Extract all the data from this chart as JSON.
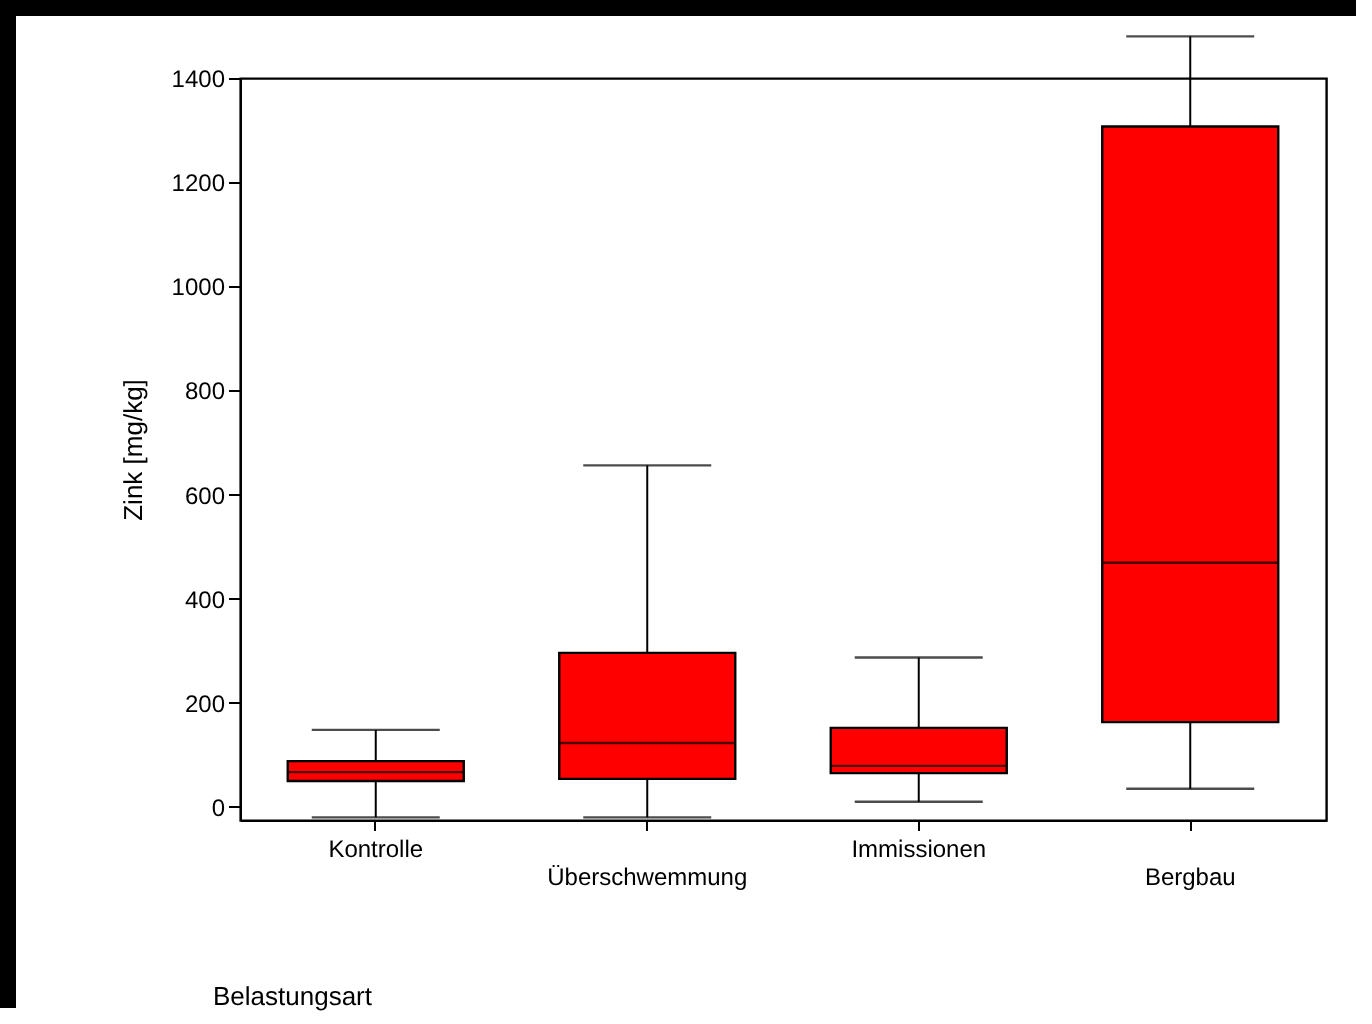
{
  "chart_data": {
    "type": "box",
    "xlabel": "Belastungsart",
    "ylabel": "Zink [mg/kg]",
    "categories": [
      "Kontrolle",
      "Überschwemmung",
      "Immissionen",
      "Bergbau"
    ],
    "boxes": [
      {
        "low": -20,
        "q1": 50,
        "median": 67,
        "q3": 88,
        "high": 148
      },
      {
        "low": -20,
        "q1": 54,
        "median": 123,
        "q3": 296,
        "high": 656
      },
      {
        "low": 10,
        "q1": 65,
        "median": 79,
        "q3": 152,
        "high": 287
      },
      {
        "low": 35,
        "q1": 163,
        "median": 469,
        "q3": 1307,
        "high": 1480
      }
    ],
    "color": "#ff0000",
    "ylim": [
      -25,
      1400
    ],
    "yticks": [
      0,
      200,
      400,
      600,
      800,
      1000,
      1200,
      1400
    ],
    "grid": false
  }
}
